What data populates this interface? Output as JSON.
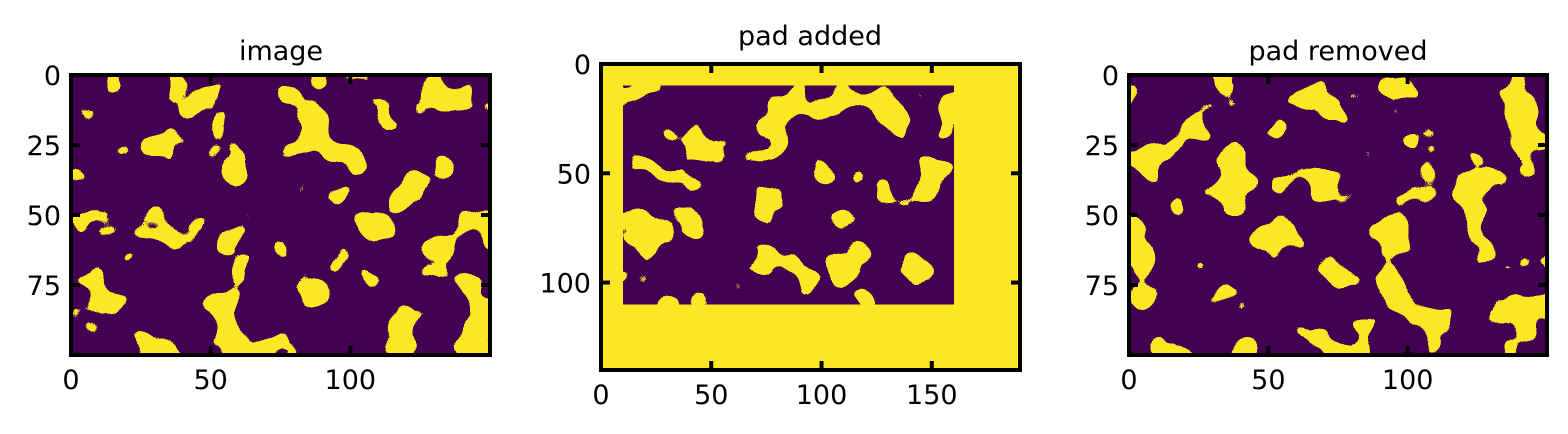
{
  "chart_data": [
    {
      "type": "heatmap",
      "title": "image",
      "xlabel": "",
      "ylabel": "",
      "xlim": [
        0,
        150
      ],
      "ylim": [
        100,
        0
      ],
      "xticks": [
        0,
        50,
        100
      ],
      "yticks": [
        0,
        25,
        50,
        75
      ],
      "colormap": [
        "#440154",
        "#fde725"
      ],
      "data_extent": [
        0,
        150,
        0,
        100
      ],
      "pad": {
        "x0": 0,
        "y0": 0,
        "x1": 0,
        "y1": 0
      }
    },
    {
      "type": "heatmap",
      "title": "pad added",
      "xlabel": "",
      "ylabel": "",
      "xlim": [
        0,
        190
      ],
      "ylim": [
        140,
        0
      ],
      "xticks": [
        0,
        50,
        100,
        150
      ],
      "yticks": [
        0,
        50,
        100
      ],
      "colormap": [
        "#440154",
        "#fde725"
      ],
      "data_extent": [
        0,
        190,
        0,
        140
      ],
      "pad": {
        "x0": 10,
        "y0": 10,
        "x1": 160,
        "y1": 110
      }
    },
    {
      "type": "heatmap",
      "title": "pad removed",
      "xlabel": "",
      "ylabel": "",
      "xlim": [
        0,
        150
      ],
      "ylim": [
        100,
        0
      ],
      "xticks": [
        0,
        50,
        100
      ],
      "yticks": [
        0,
        25,
        50,
        75
      ],
      "colormap": [
        "#440154",
        "#fde725"
      ],
      "data_extent": [
        0,
        150,
        0,
        100
      ],
      "pad": {
        "x0": 0,
        "y0": 0,
        "x1": 0,
        "y1": 0
      }
    }
  ]
}
